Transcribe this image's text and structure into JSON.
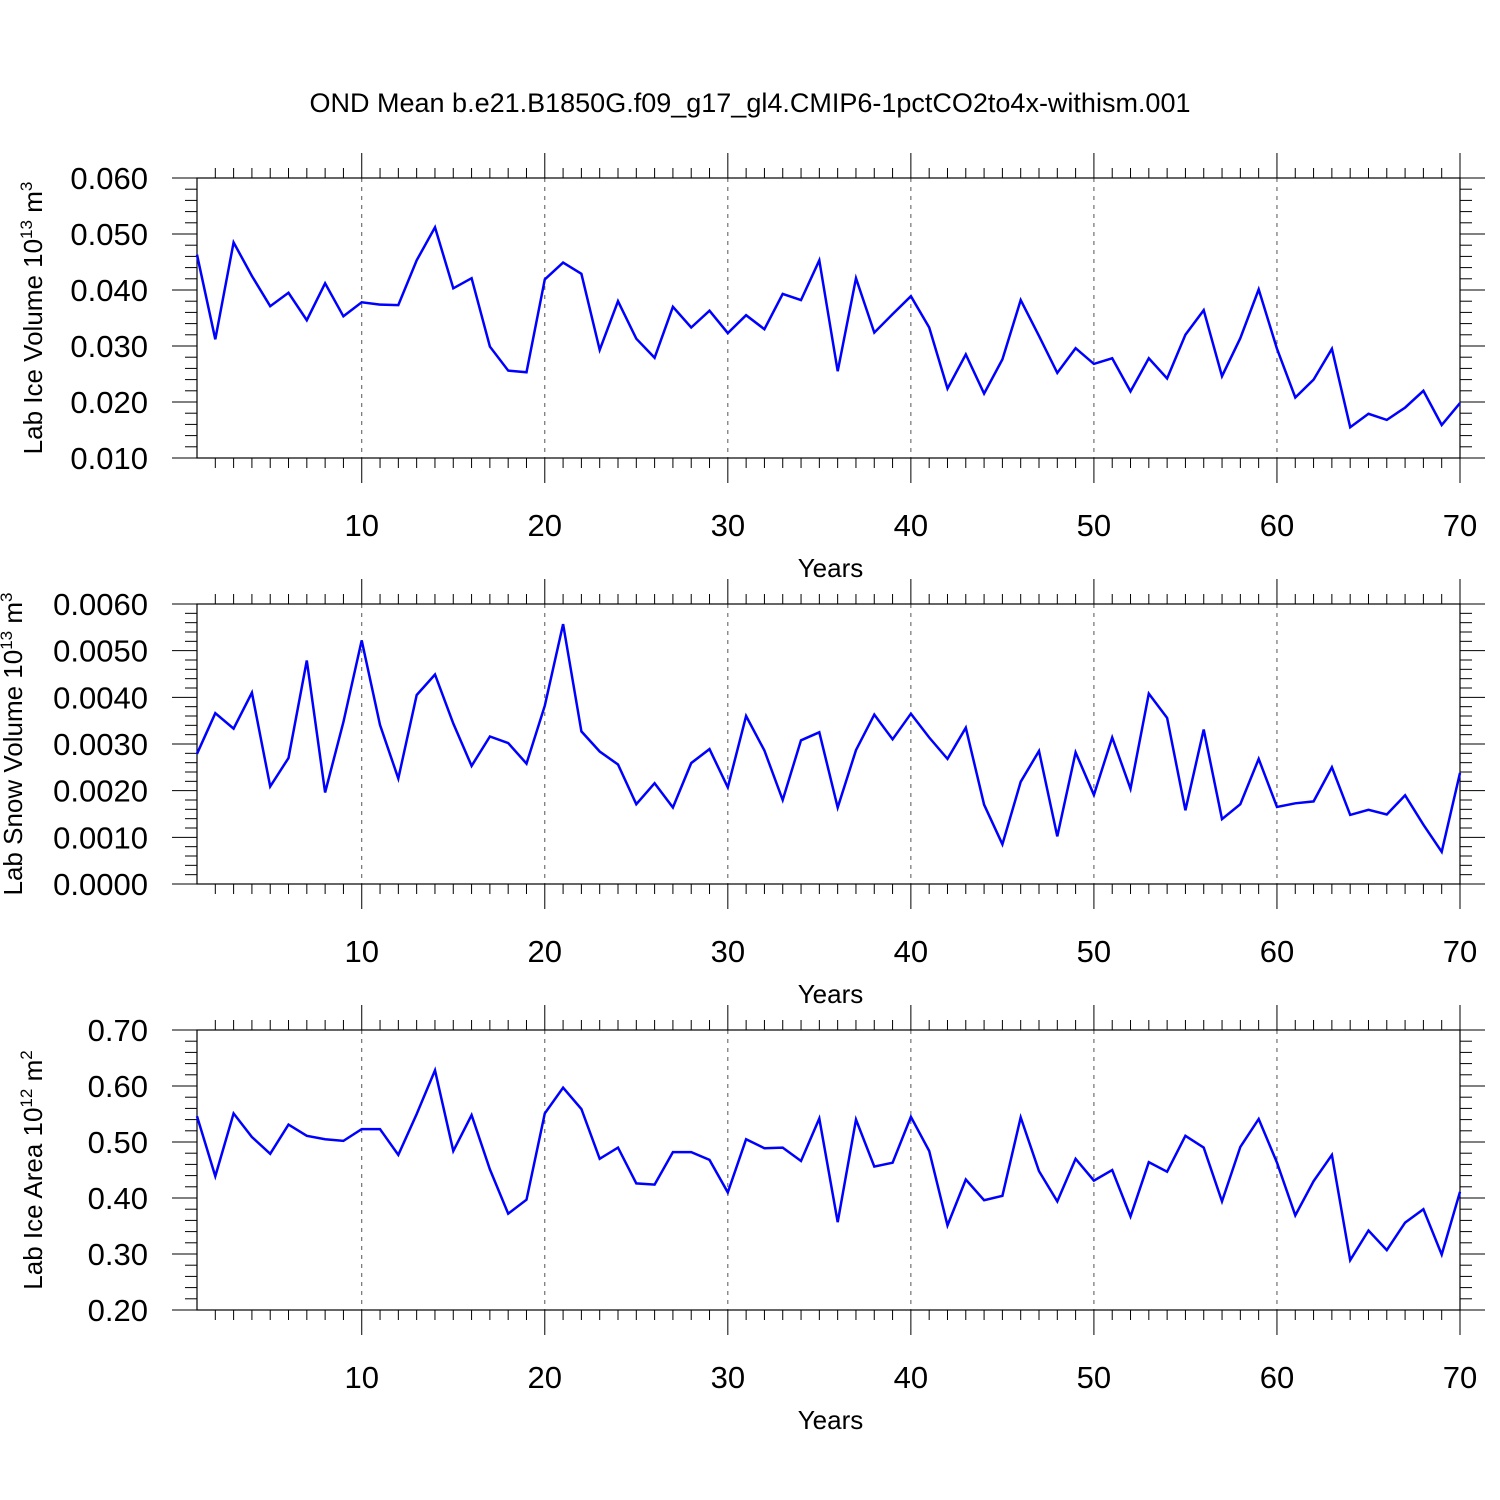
{
  "title": "OND Mean b.e21.B1850G.f09_g17_gl4.CMIP6-1pctCO2to4x-withism.001",
  "colors": {
    "line": "#0000ff",
    "axis": "#000000",
    "grid": "#555555"
  },
  "chart_data": [
    {
      "type": "line",
      "xlabel": "Years",
      "ylabel": "Lab Ice Volume 10",
      "ylabel_exp": "13",
      "ylabel_unit": " m",
      "ylabel_unit_exp": "3",
      "xlim": [
        1,
        70
      ],
      "ylim": [
        0.01,
        0.06
      ],
      "xticks": [
        10,
        20,
        30,
        40,
        50,
        60,
        70
      ],
      "yticks": [
        "0.010",
        "0.020",
        "0.030",
        "0.040",
        "0.050",
        "0.060"
      ],
      "grid": "vertical dashed at major x ticks",
      "x": [
        1,
        2,
        3,
        4,
        5,
        6,
        7,
        8,
        9,
        10,
        11,
        12,
        13,
        14,
        15,
        16,
        17,
        18,
        19,
        20,
        21,
        22,
        23,
        24,
        25,
        26,
        27,
        28,
        29,
        30,
        31,
        32,
        33,
        34,
        35,
        36,
        37,
        38,
        39,
        40,
        41,
        42,
        43,
        44,
        45,
        46,
        47,
        48,
        49,
        50,
        51,
        52,
        53,
        54,
        55,
        56,
        57,
        58,
        59,
        60,
        61,
        62,
        63,
        64,
        65,
        66,
        67,
        68,
        69,
        70
      ],
      "values": [
        0.0463,
        0.0312,
        0.0485,
        0.0425,
        0.0371,
        0.0395,
        0.0346,
        0.0412,
        0.0353,
        0.0378,
        0.0374,
        0.0373,
        0.0453,
        0.0512,
        0.0403,
        0.0421,
        0.0299,
        0.0256,
        0.0253,
        0.0419,
        0.0449,
        0.0429,
        0.0293,
        0.038,
        0.0313,
        0.0279,
        0.037,
        0.0333,
        0.0363,
        0.0323,
        0.0355,
        0.033,
        0.0393,
        0.0382,
        0.0453,
        0.0255,
        0.0421,
        0.0324,
        0.0357,
        0.0389,
        0.0333,
        0.0224,
        0.0285,
        0.0215,
        0.0276,
        0.0382,
        0.0318,
        0.0252,
        0.0296,
        0.0268,
        0.0278,
        0.0219,
        0.0278,
        0.0242,
        0.032,
        0.0364,
        0.0246,
        0.0314,
        0.0401,
        0.0295,
        0.0208,
        0.024,
        0.0295,
        0.0155,
        0.0179,
        0.0168,
        0.019,
        0.022,
        0.0159,
        0.0198
      ]
    },
    {
      "type": "line",
      "xlabel": "Years",
      "ylabel": "Lab Snow Volume 10",
      "ylabel_exp": "13",
      "ylabel_unit": " m",
      "ylabel_unit_exp": "3",
      "xlim": [
        1,
        70
      ],
      "ylim": [
        0.0,
        0.006
      ],
      "xticks": [
        10,
        20,
        30,
        40,
        50,
        60,
        70
      ],
      "yticks": [
        "0.0000",
        "0.0010",
        "0.0020",
        "0.0030",
        "0.0040",
        "0.0050",
        "0.0060"
      ],
      "grid": "vertical dashed at major x ticks",
      "x": [
        1,
        2,
        3,
        4,
        5,
        6,
        7,
        8,
        9,
        10,
        11,
        12,
        13,
        14,
        15,
        16,
        17,
        18,
        19,
        20,
        21,
        22,
        23,
        24,
        25,
        26,
        27,
        28,
        29,
        30,
        31,
        32,
        33,
        34,
        35,
        36,
        37,
        38,
        39,
        40,
        41,
        42,
        43,
        44,
        45,
        46,
        47,
        48,
        49,
        50,
        51,
        52,
        53,
        54,
        55,
        56,
        57,
        58,
        59,
        60,
        61,
        62,
        63,
        64,
        65,
        66,
        67,
        68,
        69,
        70
      ],
      "values": [
        0.00279,
        0.00366,
        0.00333,
        0.0041,
        0.00209,
        0.0027,
        0.00479,
        0.00196,
        0.00347,
        0.00522,
        0.00341,
        0.00226,
        0.00405,
        0.00449,
        0.00344,
        0.00253,
        0.00316,
        0.00302,
        0.00258,
        0.00382,
        0.00557,
        0.00327,
        0.00284,
        0.00256,
        0.00171,
        0.00216,
        0.00164,
        0.00259,
        0.00289,
        0.00207,
        0.0036,
        0.00286,
        0.0018,
        0.00308,
        0.00325,
        0.00164,
        0.00287,
        0.00363,
        0.0031,
        0.00365,
        0.00314,
        0.00268,
        0.00335,
        0.0017,
        0.00085,
        0.00219,
        0.00285,
        0.00102,
        0.00282,
        0.00191,
        0.00314,
        0.00204,
        0.00408,
        0.00356,
        0.00158,
        0.00331,
        0.00139,
        0.00171,
        0.00268,
        0.00165,
        0.00173,
        0.00177,
        0.0025,
        0.00148,
        0.00159,
        0.00149,
        0.0019,
        0.00127,
        0.00069,
        0.00238
      ]
    },
    {
      "type": "line",
      "xlabel": "Years",
      "ylabel": "Lab Ice Area 10",
      "ylabel_exp": "12",
      "ylabel_unit": " m",
      "ylabel_unit_exp": "2",
      "xlim": [
        1,
        70
      ],
      "ylim": [
        0.2,
        0.7
      ],
      "xticks": [
        10,
        20,
        30,
        40,
        50,
        60,
        70
      ],
      "yticks": [
        "0.20",
        "0.30",
        "0.40",
        "0.50",
        "0.60",
        "0.70"
      ],
      "grid": "vertical dashed at major x ticks",
      "x": [
        1,
        2,
        3,
        4,
        5,
        6,
        7,
        8,
        9,
        10,
        11,
        12,
        13,
        14,
        15,
        16,
        17,
        18,
        19,
        20,
        21,
        22,
        23,
        24,
        25,
        26,
        27,
        28,
        29,
        30,
        31,
        32,
        33,
        34,
        35,
        36,
        37,
        38,
        39,
        40,
        41,
        42,
        43,
        44,
        45,
        46,
        47,
        48,
        49,
        50,
        51,
        52,
        53,
        54,
        55,
        56,
        57,
        58,
        59,
        60,
        61,
        62,
        63,
        64,
        65,
        66,
        67,
        68,
        69,
        70
      ],
      "values": [
        0.546,
        0.439,
        0.551,
        0.509,
        0.479,
        0.531,
        0.511,
        0.505,
        0.502,
        0.523,
        0.523,
        0.477,
        0.55,
        0.628,
        0.484,
        0.548,
        0.451,
        0.372,
        0.397,
        0.551,
        0.597,
        0.559,
        0.47,
        0.49,
        0.426,
        0.424,
        0.482,
        0.482,
        0.468,
        0.41,
        0.505,
        0.489,
        0.49,
        0.466,
        0.542,
        0.357,
        0.54,
        0.456,
        0.463,
        0.545,
        0.484,
        0.351,
        0.433,
        0.396,
        0.404,
        0.544,
        0.448,
        0.394,
        0.47,
        0.431,
        0.45,
        0.367,
        0.464,
        0.447,
        0.511,
        0.49,
        0.394,
        0.491,
        0.541,
        0.463,
        0.369,
        0.43,
        0.477,
        0.289,
        0.342,
        0.307,
        0.356,
        0.38,
        0.299,
        0.411
      ]
    }
  ]
}
